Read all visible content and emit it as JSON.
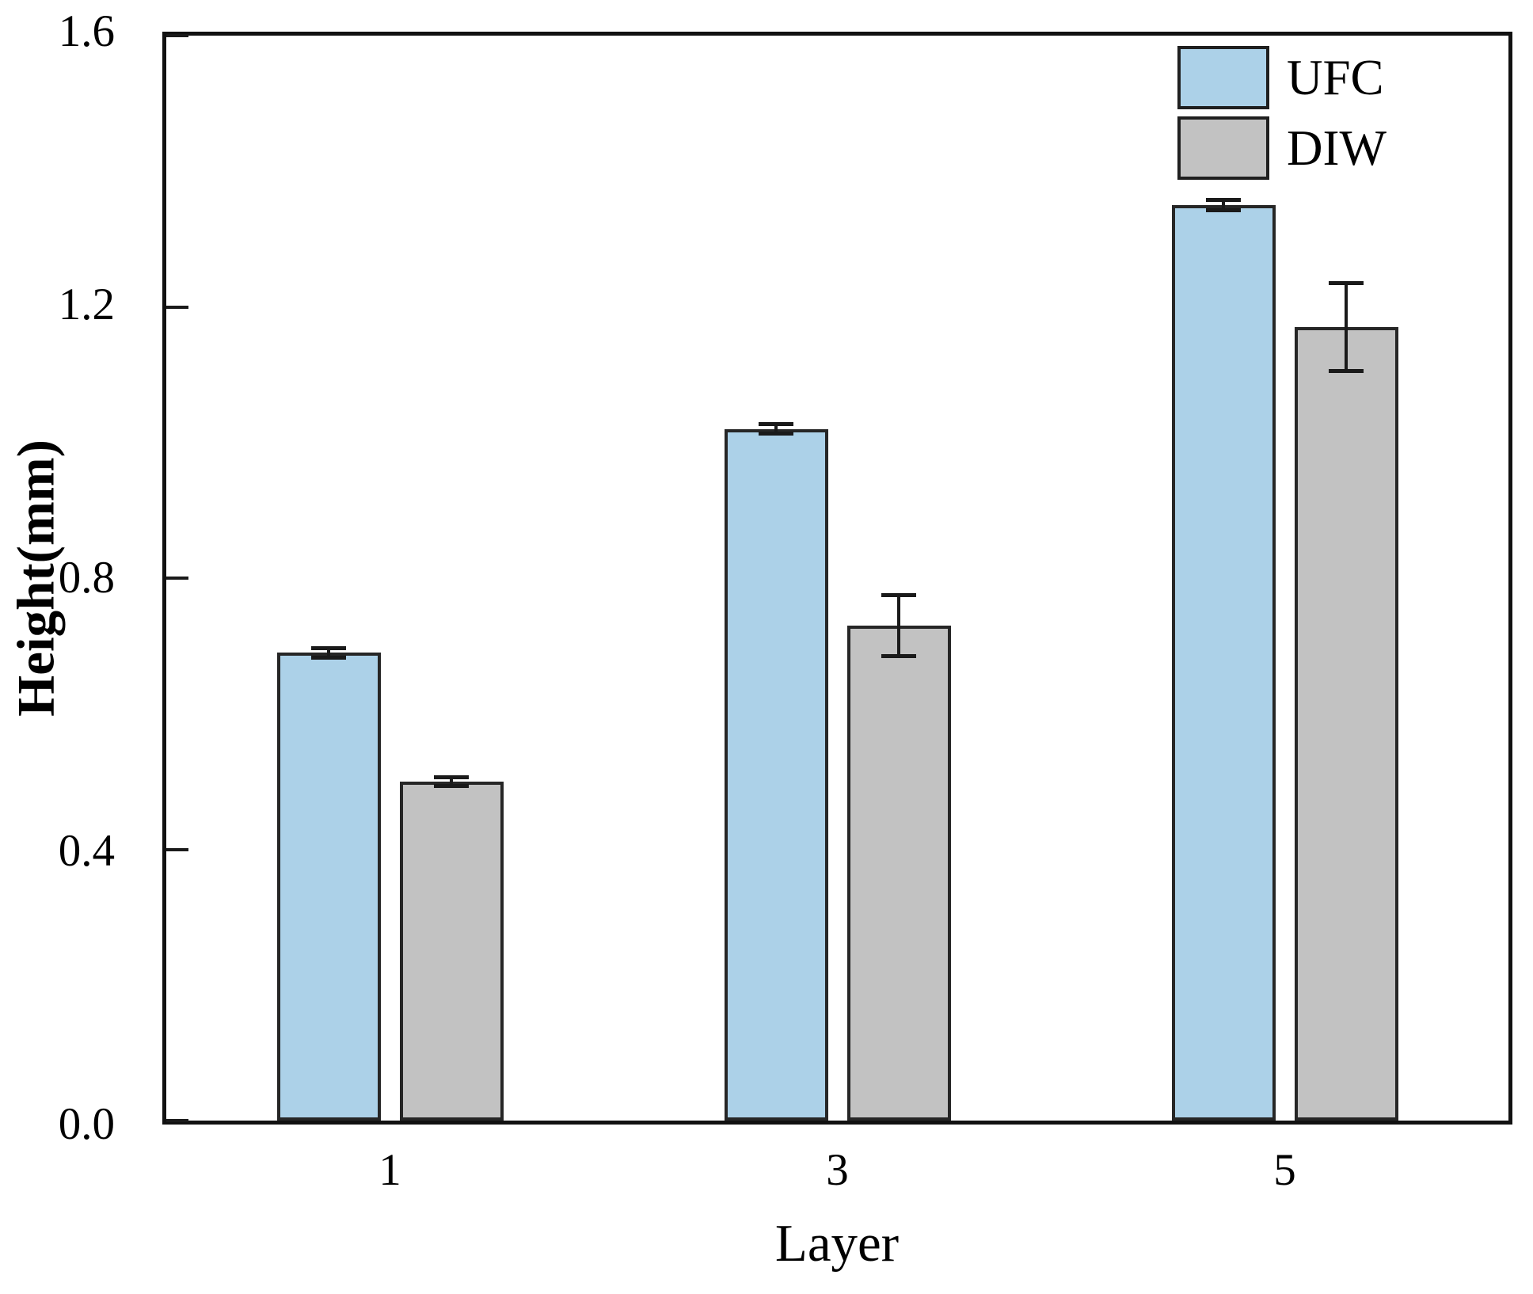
{
  "figure": {
    "background": "#ffffff",
    "frame_color": "#111111"
  },
  "chart_data": {
    "type": "bar",
    "title": "",
    "xlabel": "Layer",
    "ylabel": "Height(mm)",
    "categories": [
      "1",
      "3",
      "5"
    ],
    "series": [
      {
        "name": "UFC",
        "color": "#ACD1E8",
        "edge_color": "#262626",
        "values": [
          0.69,
          1.02,
          1.35
        ],
        "errors": [
          0.007,
          0.007,
          0.008
        ]
      },
      {
        "name": "DIW",
        "color": "#C2C2C2",
        "edge_color": "#262626",
        "values": [
          0.5,
          0.73,
          1.17
        ],
        "errors": [
          0.006,
          0.045,
          0.065
        ]
      }
    ],
    "ylim": [
      0,
      1.6
    ],
    "yticks": [
      0.0,
      0.4,
      0.8,
      1.2,
      1.6
    ],
    "ytick_labels": [
      "0.0",
      "0.4",
      "0.8",
      "1.2",
      "1.6"
    ],
    "grid": false,
    "legend_position": "top-right",
    "error_bar_color": "#1a1a1a"
  }
}
